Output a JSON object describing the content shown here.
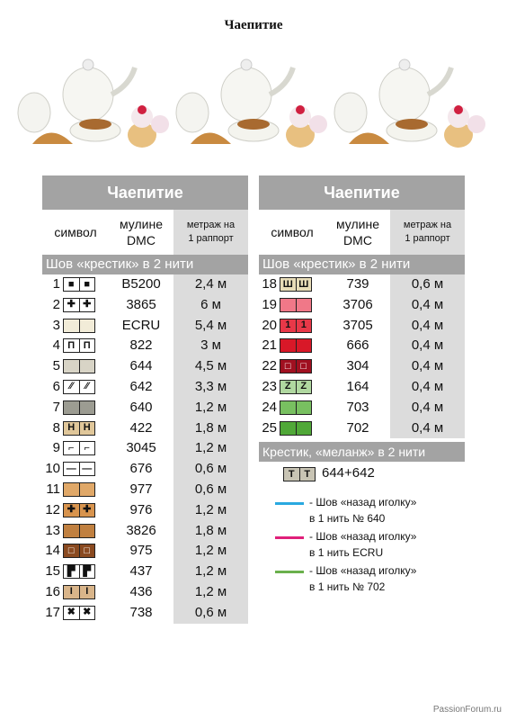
{
  "title": "Чаепитие",
  "banner": {
    "image": "tea-set-cross-stitch-pattern"
  },
  "headers": {
    "symbol": "символ",
    "mouline": "мулине\nDMC",
    "meters": "метраж на\n1 раппорт"
  },
  "panels": [
    {
      "title": "Чаепитие",
      "section": "Шов «крестик» в 2 нити",
      "rows": [
        {
          "num": "1",
          "code": "B5200",
          "amount": "2,4 м",
          "color": "#ffffff",
          "fg": "#111",
          "glyph": "■"
        },
        {
          "num": "2",
          "code": "3865",
          "amount": "6 м",
          "color": "#ffffff",
          "fg": "#111",
          "glyph": "✚"
        },
        {
          "num": "3",
          "code": "ECRU",
          "amount": "5,4 м",
          "color": "#f2ecd8",
          "fg": "#111",
          "glyph": ""
        },
        {
          "num": "4",
          "code": "822",
          "amount": "3 м",
          "color": "#ffffff",
          "fg": "#111",
          "glyph": "П"
        },
        {
          "num": "5",
          "code": "644",
          "amount": "4,5 м",
          "color": "#d8d4c6",
          "fg": "#111",
          "glyph": ""
        },
        {
          "num": "6",
          "code": "642",
          "amount": "3,3 м",
          "color": "#ffffff",
          "fg": "#111",
          "glyph": "⁄⁄"
        },
        {
          "num": "7",
          "code": "640",
          "amount": "1,2 м",
          "color": "#9c9c92",
          "fg": "#111",
          "glyph": ""
        },
        {
          "num": "8",
          "code": "422",
          "amount": "1,8 м",
          "color": "#e0c79a",
          "fg": "#111",
          "glyph": "Н"
        },
        {
          "num": "9",
          "code": "3045",
          "amount": "1,2 м",
          "color": "#ffffff",
          "fg": "#111",
          "glyph": "⌐"
        },
        {
          "num": "10",
          "code": "676",
          "amount": "0,6 м",
          "color": "#ffffff",
          "fg": "#111",
          "glyph": "—"
        },
        {
          "num": "11",
          "code": "977",
          "amount": "0,6 м",
          "color": "#e0a868",
          "fg": "#111",
          "glyph": ""
        },
        {
          "num": "12",
          "code": "976",
          "amount": "1,2 м",
          "color": "#d8944e",
          "fg": "#111",
          "glyph": "✚"
        },
        {
          "num": "13",
          "code": "3826",
          "amount": "1,8 м",
          "color": "#c08040",
          "fg": "#111",
          "glyph": ""
        },
        {
          "num": "14",
          "code": "975",
          "amount": "1,2 м",
          "color": "#8a4a20",
          "fg": "#fff",
          "glyph": "□"
        },
        {
          "num": "15",
          "code": "437",
          "amount": "1,2 м",
          "color": "#ffffff",
          "fg": "#111",
          "glyph": "▛"
        },
        {
          "num": "16",
          "code": "436",
          "amount": "1,2 м",
          "color": "#d9b58a",
          "fg": "#111",
          "glyph": "I"
        },
        {
          "num": "17",
          "code": "738",
          "amount": "0,6 м",
          "color": "#ffffff",
          "fg": "#111",
          "glyph": "✖"
        }
      ]
    },
    {
      "title": "Чаепитие",
      "section": "Шов «крестик» в 2 нити",
      "rows": [
        {
          "num": "18",
          "code": "739",
          "amount": "0,6 м",
          "color": "#e8ddb8",
          "fg": "#111",
          "glyph": "Ш"
        },
        {
          "num": "19",
          "code": "3706",
          "amount": "0,4 м",
          "color": "#f07888",
          "fg": "#111",
          "glyph": ""
        },
        {
          "num": "20",
          "code": "3705",
          "amount": "0,4 м",
          "color": "#e83848",
          "fg": "#111",
          "glyph": "1"
        },
        {
          "num": "21",
          "code": "666",
          "amount": "0,4 м",
          "color": "#d81828",
          "fg": "#111",
          "glyph": ""
        },
        {
          "num": "22",
          "code": "304",
          "amount": "0,4 м",
          "color": "#a01020",
          "fg": "#fff",
          "glyph": "□"
        },
        {
          "num": "23",
          "code": "164",
          "amount": "0,4 м",
          "color": "#b0d8a0",
          "fg": "#111",
          "glyph": "Z"
        },
        {
          "num": "24",
          "code": "703",
          "amount": "0,4 м",
          "color": "#78c060",
          "fg": "#111",
          "glyph": ""
        },
        {
          "num": "25",
          "code": "702",
          "amount": "0,4 м",
          "color": "#50a838",
          "fg": "#111",
          "glyph": ""
        }
      ],
      "melange": {
        "title": "Крестик, «меланж» в 2 нити",
        "glyph": "T",
        "label": "644+642"
      },
      "backstitch": [
        {
          "color": "#29a9e0",
          "line1": "- Шов «назад иголку»",
          "line2": "в 1 нить № 640"
        },
        {
          "color": "#e0207a",
          "line1": "- Шов «назад иголку»",
          "line2": "в 1 нить ECRU"
        },
        {
          "color": "#6ab04c",
          "line1": "- Шов «назад иголку»",
          "line2": "в 1 нить № 702"
        }
      ]
    }
  ],
  "watermark": "PassionForum.ru"
}
